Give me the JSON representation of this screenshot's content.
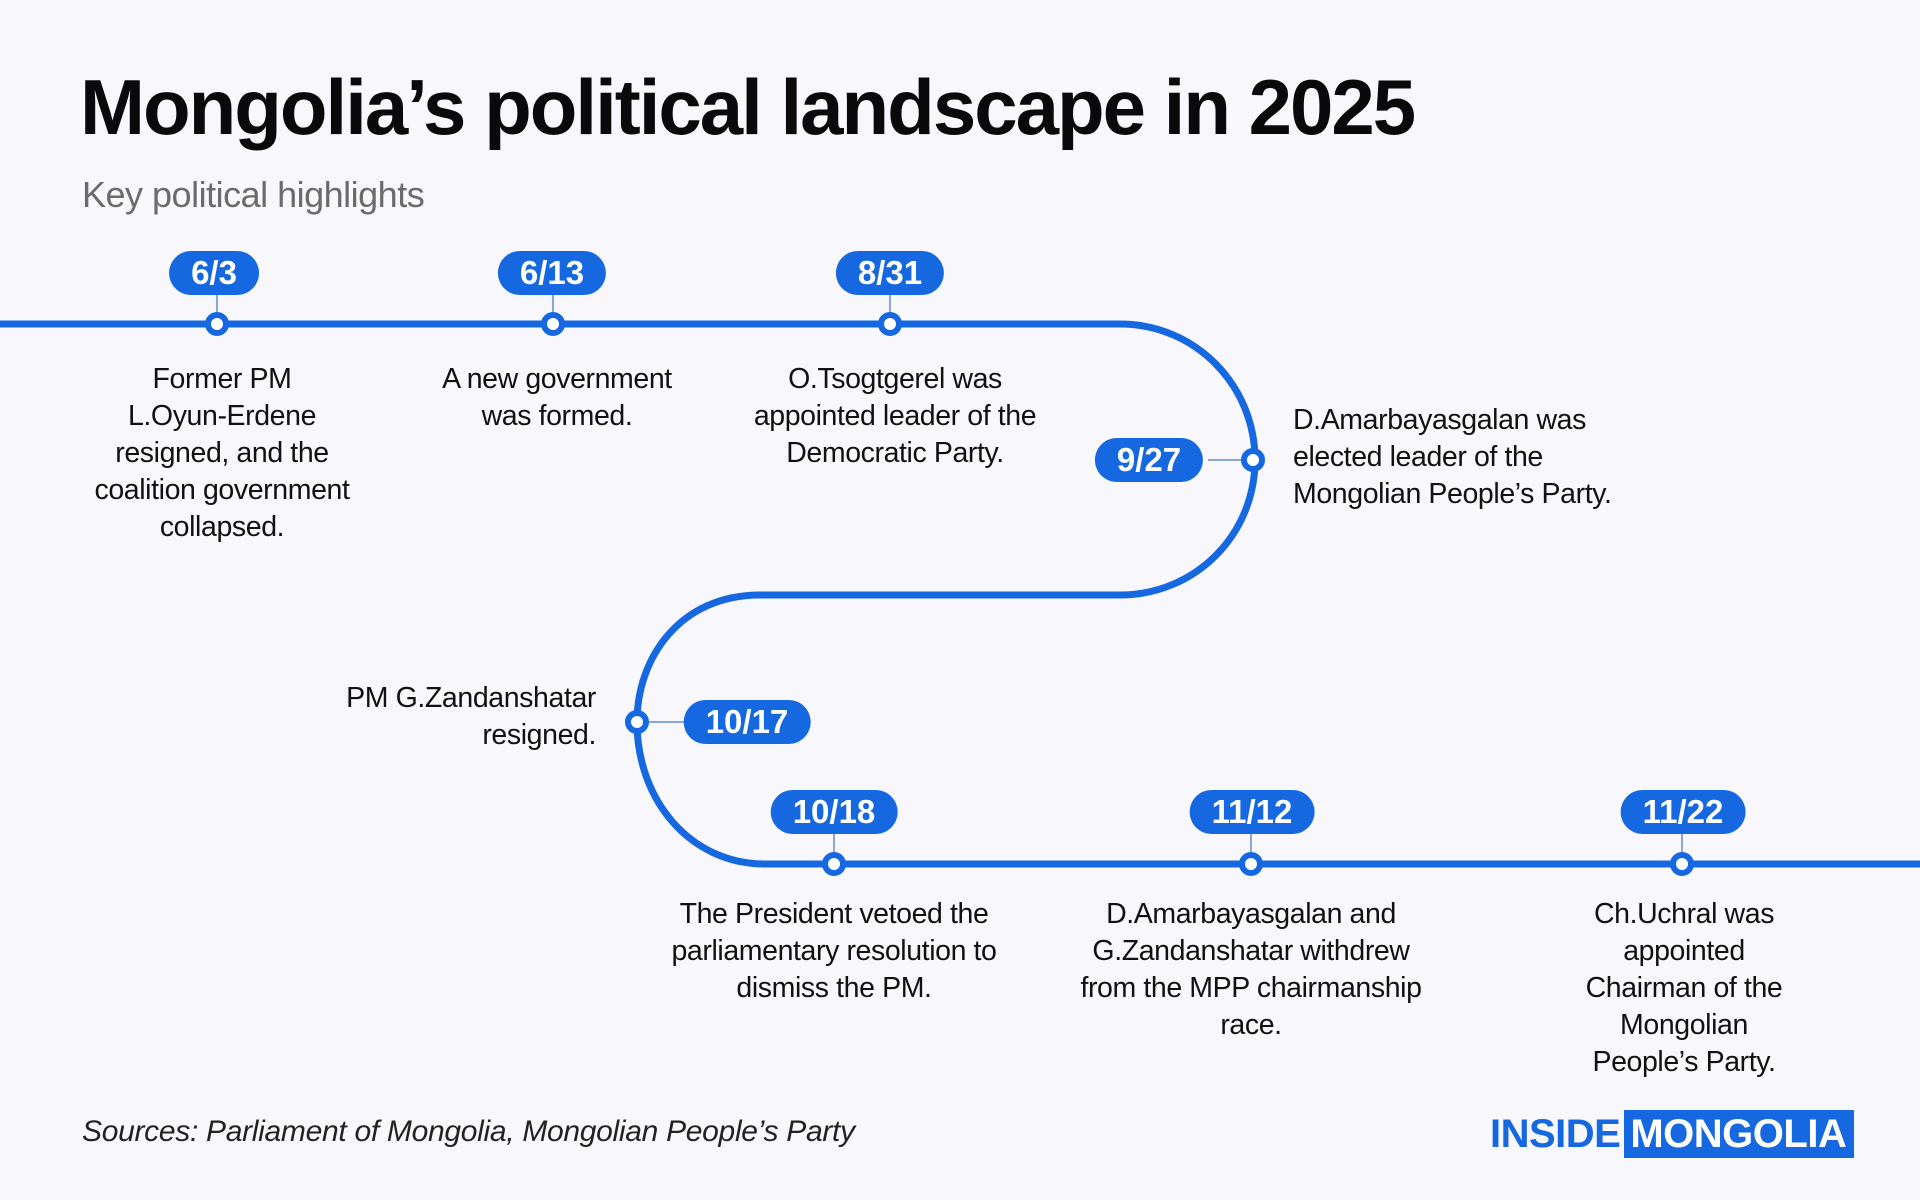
{
  "title": "Mongolia’s political landscape in 2025",
  "subtitle": "Key political highlights",
  "colors": {
    "accent": "#1668e0",
    "background": "#f7f7fc",
    "text": "#111111",
    "muted": "#6b6b6b"
  },
  "events": [
    {
      "date": "6/3",
      "lines": [
        "Former PM",
        "L.Oyun-Erdene",
        "resigned, and the",
        "coalition government",
        "collapsed."
      ]
    },
    {
      "date": "6/13",
      "lines": [
        "A new government",
        "was formed."
      ]
    },
    {
      "date": "8/31",
      "lines": [
        "O.Tsogtgerel was",
        "appointed leader of the",
        "Democratic Party."
      ]
    },
    {
      "date": "9/27",
      "lines": [
        "D.Amarbayasgalan was",
        "elected leader of the",
        "Mongolian People’s Party."
      ]
    },
    {
      "date": "10/17",
      "lines": [
        "PM G.Zandanshatar",
        "resigned."
      ]
    },
    {
      "date": "10/18",
      "lines": [
        "The President vetoed the",
        "parliamentary resolution to",
        "dismiss the PM."
      ]
    },
    {
      "date": "11/12",
      "lines": [
        "D.Amarbayasgalan and",
        "G.Zandanshatar withdrew",
        "from the MPP chairmanship",
        "race."
      ]
    },
    {
      "date": "11/22",
      "lines": [
        "Ch.Uchral was appointed",
        "Chairman of the Mongolian",
        "People’s Party."
      ]
    }
  ],
  "sources": "Sources: Parliament of Mongolia, Mongolian People’s Party",
  "brand": {
    "part1": "INSIDE",
    "part2": "MONGOLIA"
  }
}
